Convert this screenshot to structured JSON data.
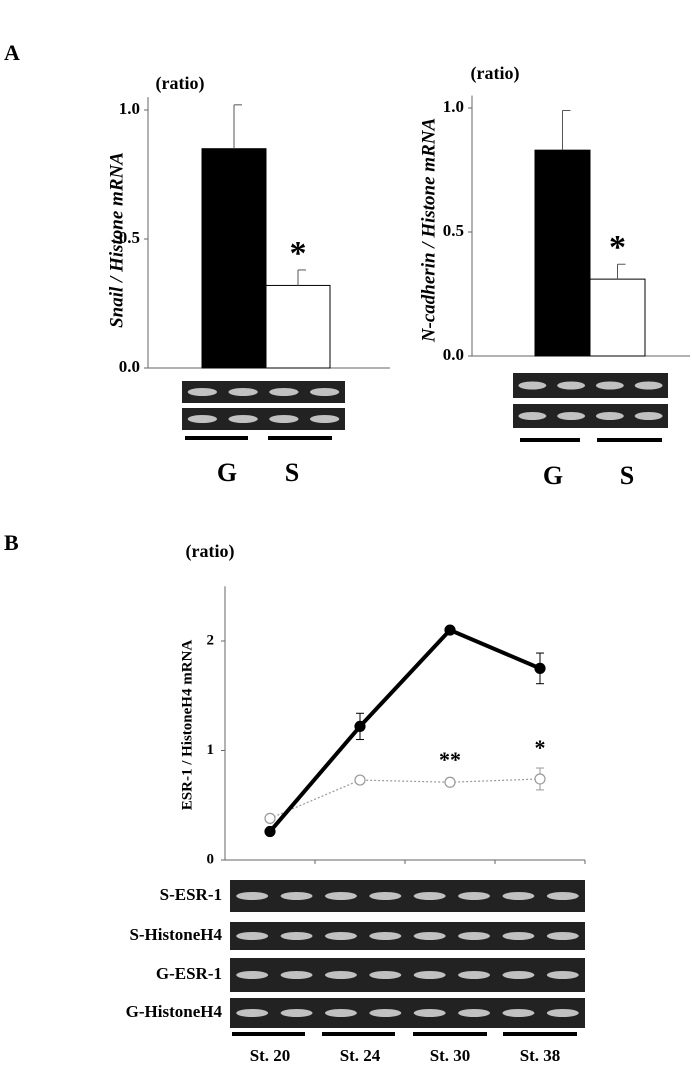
{
  "panel_labels": [
    "A",
    "B"
  ],
  "chart_data": [
    {
      "type": "bar",
      "unit_label": "(ratio)",
      "y_label": "Snail / Histone mRNA",
      "categories": [
        "G",
        "S"
      ],
      "values": [
        0.85,
        0.32
      ],
      "errors": [
        0.17,
        0.06
      ],
      "colors": [
        "#000000",
        "#ffffff"
      ],
      "ylim": [
        0,
        1.05
      ],
      "yticks": [
        {
          "value": 0,
          "label": "0.0"
        },
        {
          "value": 0.5,
          "label": "0.5"
        },
        {
          "value": 1,
          "label": "1.0"
        }
      ],
      "annotations": [
        {
          "text": "*",
          "category": "S"
        }
      ]
    },
    {
      "type": "bar",
      "unit_label": "(ratio)",
      "y_label": "N-cadherin / Histone mRNA",
      "categories": [
        "G",
        "S"
      ],
      "values": [
        0.83,
        0.31
      ],
      "errors": [
        0.16,
        0.06
      ],
      "colors": [
        "#000000",
        "#ffffff"
      ],
      "ylim": [
        0,
        1.05
      ],
      "yticks": [
        {
          "value": 0,
          "label": "0.0"
        },
        {
          "value": 0.5,
          "label": "0.5"
        },
        {
          "value": 1,
          "label": "1.0"
        }
      ],
      "annotations": [
        {
          "text": "*",
          "category": "S"
        }
      ]
    },
    {
      "type": "line",
      "unit_label": "(ratio)",
      "y_label": "ESR-1 / HistoneH4 mRNA",
      "categories": [
        "St. 20",
        "St. 24",
        "St. 30",
        "St. 38"
      ],
      "series": [
        {
          "color": "#000000",
          "values": [
            0.26,
            1.22,
            2.1,
            1.75
          ],
          "errors": [
            0.02,
            0.12,
            0.03,
            0.14
          ]
        },
        {
          "color": "#999999",
          "values": [
            0.38,
            0.73,
            0.71,
            0.74
          ],
          "errors": [
            0.02,
            0.03,
            0.02,
            0.1
          ]
        }
      ],
      "ylim": [
        0,
        2.5
      ],
      "yticks": [
        0,
        1,
        2
      ],
      "annotations": [
        {
          "text": "**",
          "category": "St. 30"
        },
        {
          "text": "*",
          "category": "St. 38"
        }
      ],
      "gel_labels": [
        "S-ESR-1",
        "S-HistoneH4",
        "G-ESR-1",
        "G-HistoneH4"
      ]
    }
  ]
}
